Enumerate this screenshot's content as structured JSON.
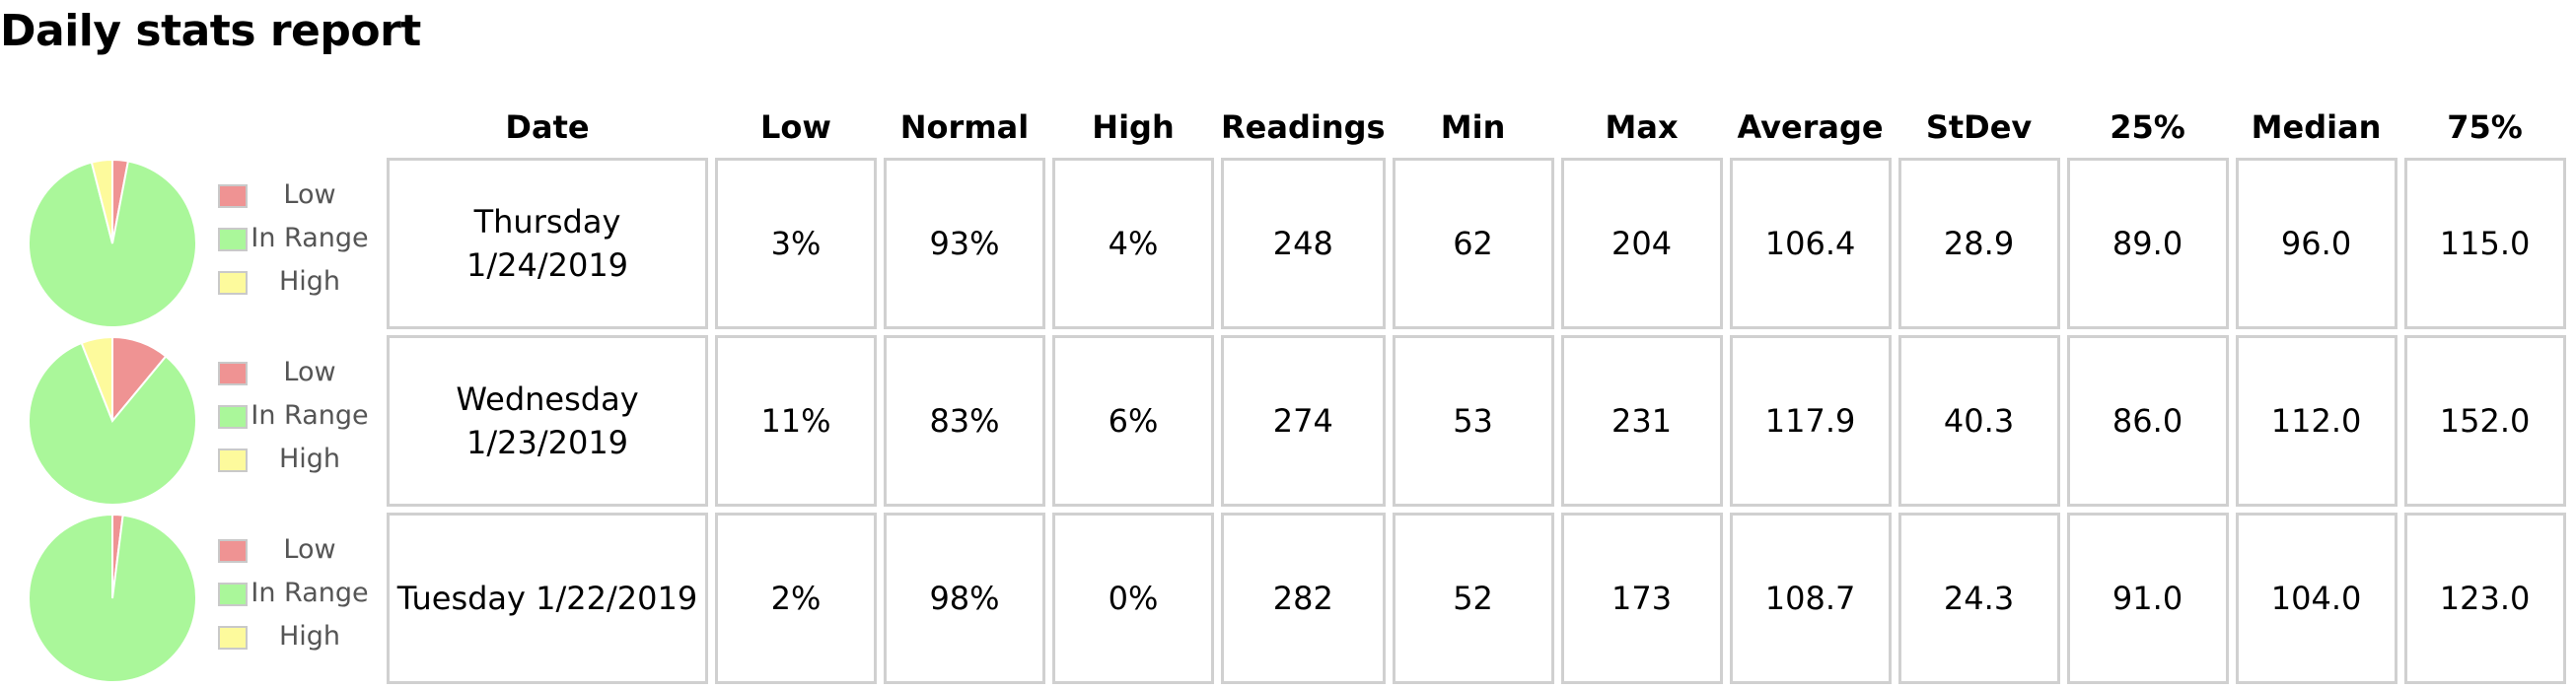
{
  "title": "Daily stats report",
  "colors": {
    "low": "#ef9393",
    "in_range": "#aaf79a",
    "high": "#fdfa9c",
    "cell_border": "#d0d0d0"
  },
  "legend": [
    "Low",
    "In Range",
    "High"
  ],
  "columns": [
    "Date",
    "Low",
    "Normal",
    "High",
    "Readings",
    "Min",
    "Max",
    "Average",
    "StDev",
    "25%",
    "Median",
    "75%"
  ],
  "rows": [
    {
      "date": "Thursday 1/24/2019",
      "low": "3%",
      "normal": "93%",
      "high": "4%",
      "readings": "248",
      "min": "62",
      "max": "204",
      "average": "106.4",
      "stdev": "28.9",
      "p25": "89.0",
      "median": "96.0",
      "p75": "115.0"
    },
    {
      "date": "Wednesday 1/23/2019",
      "low": "11%",
      "normal": "83%",
      "high": "6%",
      "readings": "274",
      "min": "53",
      "max": "231",
      "average": "117.9",
      "stdev": "40.3",
      "p25": "86.0",
      "median": "112.0",
      "p75": "152.0"
    },
    {
      "date": "Tuesday 1/22/2019",
      "low": "2%",
      "normal": "98%",
      "high": "0%",
      "readings": "282",
      "min": "52",
      "max": "173",
      "average": "108.7",
      "stdev": "24.3",
      "p25": "91.0",
      "median": "104.0",
      "p75": "123.0"
    }
  ],
  "chart_data": [
    {
      "type": "pie",
      "categories": [
        "Low",
        "In Range",
        "High"
      ],
      "values": [
        3,
        93,
        4
      ]
    },
    {
      "type": "pie",
      "categories": [
        "Low",
        "In Range",
        "High"
      ],
      "values": [
        11,
        83,
        6
      ]
    },
    {
      "type": "pie",
      "categories": [
        "Low",
        "In Range",
        "High"
      ],
      "values": [
        2,
        98,
        0
      ]
    }
  ]
}
